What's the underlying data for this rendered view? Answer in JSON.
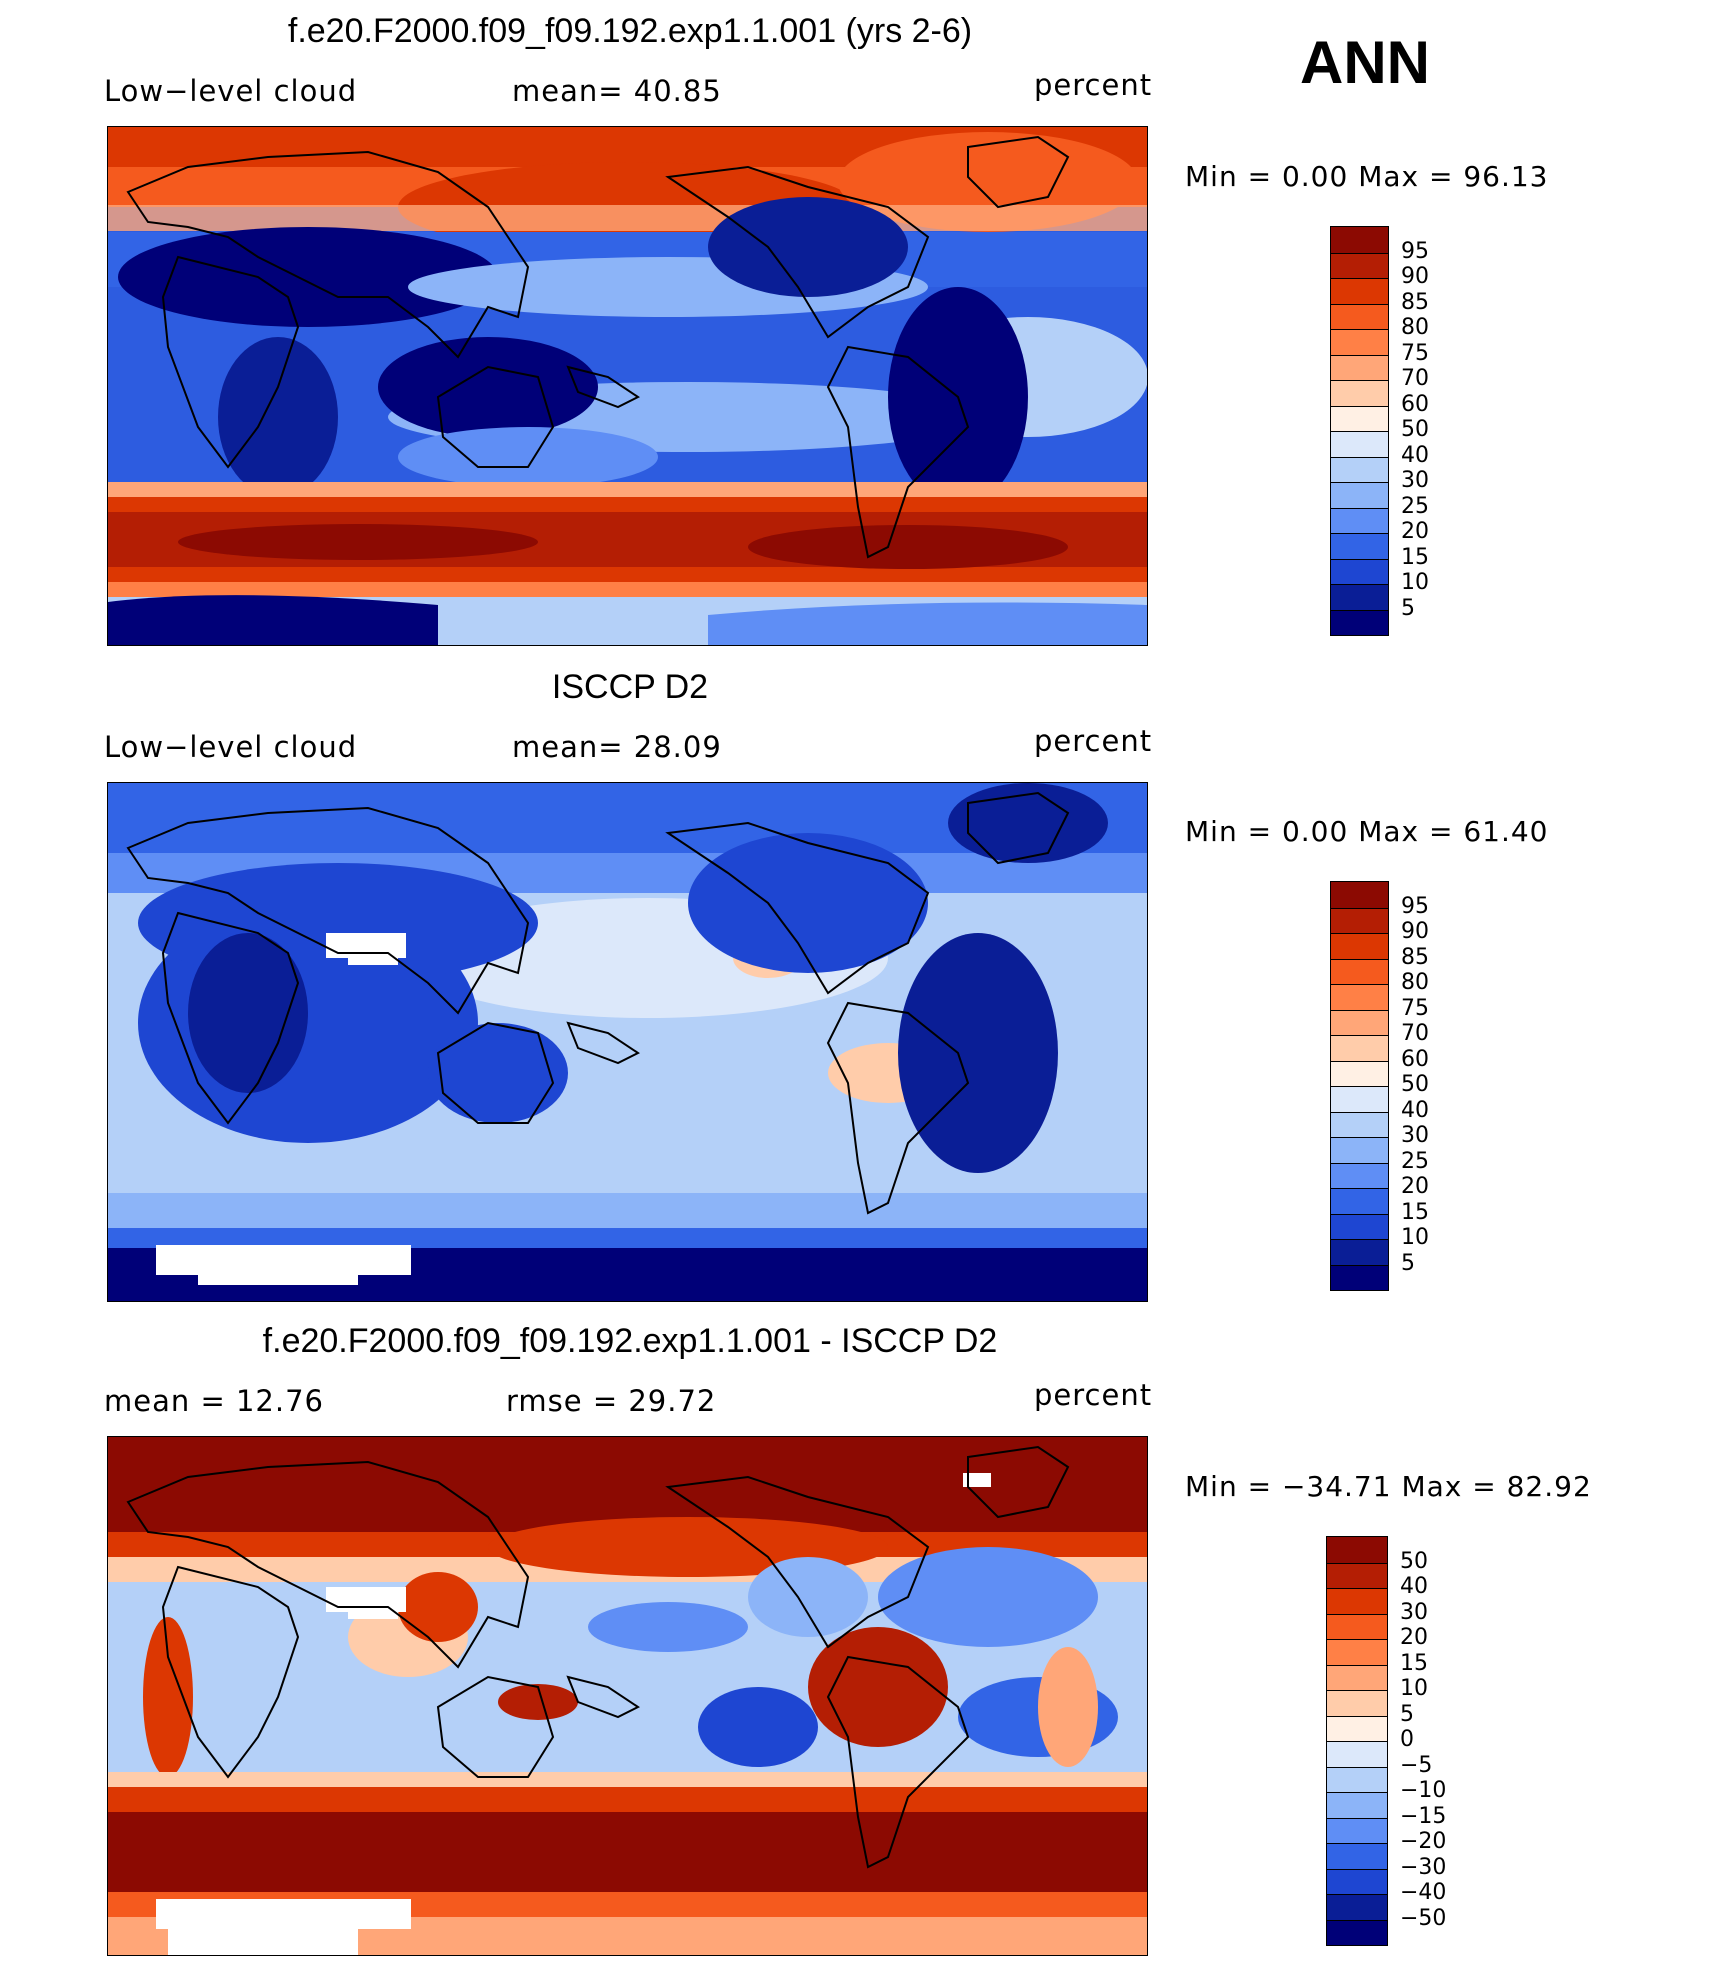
{
  "season": "ANN",
  "panels": [
    {
      "title": "f.e20.F2000.f09_f09.192.exp1.1.001 (yrs 2-6)",
      "left_label": "Low−level cloud",
      "mid_label": "mean=   40.85",
      "units": "percent",
      "minmax": "Min =     0.00  Max =    96.13",
      "colorbar_labels": [
        "95",
        "90",
        "85",
        "80",
        "75",
        "70",
        "60",
        "50",
        "40",
        "30",
        "25",
        "20",
        "15",
        "10",
        "5"
      ],
      "colors": [
        "#8c0a02",
        "#b41e04",
        "#dc3702",
        "#f55a1e",
        "#ff8046",
        "#ffa678",
        "#ffccaa",
        "#fff0e4",
        "#dce8fa",
        "#b4d0f8",
        "#8cb4f8",
        "#5f8ef5",
        "#3264e6",
        "#1e46d2",
        "#0a1e96",
        "#000078"
      ]
    },
    {
      "title": "ISCCP D2",
      "left_label": "Low−level cloud",
      "mid_label": "mean=   28.09",
      "units": "percent",
      "minmax": "Min =     0.00  Max =    61.40",
      "colorbar_labels": [
        "95",
        "90",
        "85",
        "80",
        "75",
        "70",
        "60",
        "50",
        "40",
        "30",
        "25",
        "20",
        "15",
        "10",
        "5"
      ],
      "colors": [
        "#8c0a02",
        "#b41e04",
        "#dc3702",
        "#f55a1e",
        "#ff8046",
        "#ffa678",
        "#ffccaa",
        "#fff0e4",
        "#dce8fa",
        "#b4d0f8",
        "#8cb4f8",
        "#5f8ef5",
        "#3264e6",
        "#1e46d2",
        "#0a1e96",
        "#000078"
      ]
    },
    {
      "title": "f.e20.F2000.f09_f09.192.exp1.1.001 - ISCCP D2",
      "left_label": "mean =    12.76",
      "mid_label": "rmse =    29.72",
      "units": "percent",
      "minmax": "Min = −34.71  Max =    82.92",
      "colorbar_labels": [
        "50",
        "40",
        "30",
        "20",
        "15",
        "10",
        "5",
        "0",
        "−5",
        "−10",
        "−15",
        "−20",
        "−30",
        "−40",
        "−50"
      ],
      "colors": [
        "#8c0a02",
        "#b41e04",
        "#dc3702",
        "#f55a1e",
        "#ff8046",
        "#ffa678",
        "#ffccaa",
        "#fff0e4",
        "#dce8fa",
        "#b4d0f8",
        "#8cb4f8",
        "#5f8ef5",
        "#3264e6",
        "#1e46d2",
        "#0a1e96",
        "#000078"
      ]
    }
  ]
}
